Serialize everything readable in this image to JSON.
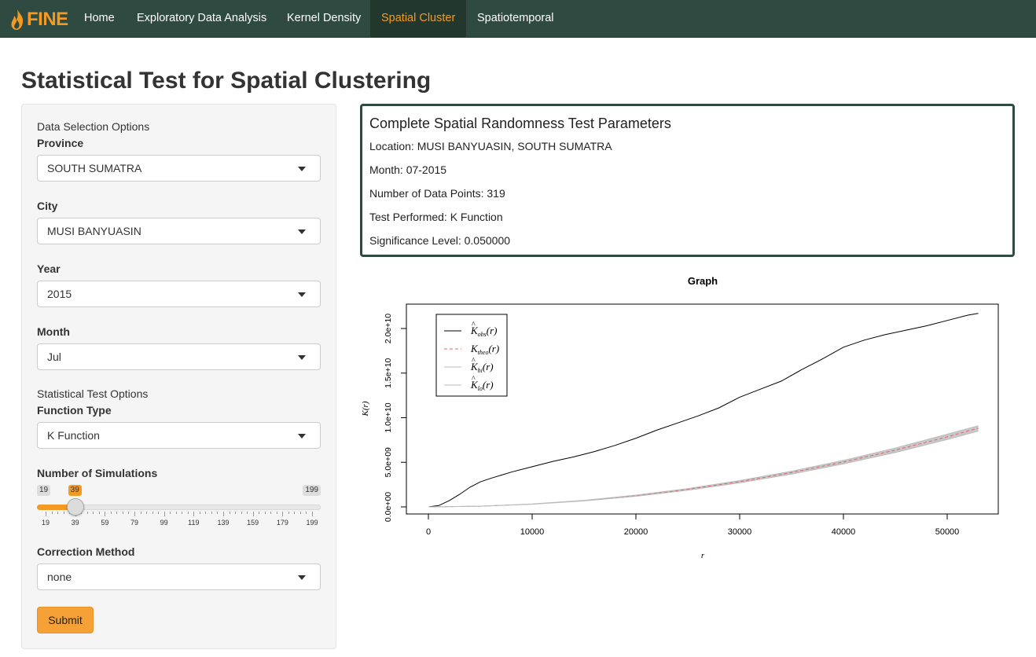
{
  "nav": {
    "brand": "FINE",
    "items": [
      "Home",
      "Exploratory Data Analysis",
      "Kernel Density",
      "Spatial Cluster",
      "Spatiotemporal"
    ],
    "active": "Spatial Cluster"
  },
  "page_title": "Statistical Test for Spatial Clustering",
  "sidebar": {
    "data_section": "Data Selection Options",
    "province": {
      "label": "Province",
      "value": "SOUTH SUMATRA"
    },
    "city": {
      "label": "City",
      "value": "MUSI BANYUASIN"
    },
    "year": {
      "label": "Year",
      "value": "2015"
    },
    "month": {
      "label": "Month",
      "value": "Jul"
    },
    "test_section": "Statistical Test Options",
    "function_type": {
      "label": "Function Type",
      "value": "K Function"
    },
    "simulations": {
      "label": "Number of Simulations",
      "min": "19",
      "max": "199",
      "value": "39",
      "value_num": 39,
      "min_num": 19,
      "max_num": 199,
      "ticks": [
        "19",
        "39",
        "59",
        "79",
        "99",
        "119",
        "139",
        "159",
        "179",
        "199"
      ]
    },
    "correction": {
      "label": "Correction Method",
      "value": "none"
    },
    "submit_label": "Submit"
  },
  "params": {
    "title": "Complete Spatial Randomness Test Parameters",
    "location": "Location: MUSI BANYUASIN, SOUTH SUMATRA",
    "month": "Month: 07-2015",
    "points": "Number of Data Points: 319",
    "test": "Test Performed: K Function",
    "significance": "Significance Level: 0.050000"
  },
  "colors": {
    "navbar": "#2e4a41",
    "accent": "#f39a24"
  },
  "chart_data": {
    "type": "line",
    "title": "Graph",
    "xlabel": "r",
    "ylabel": "K(r)",
    "xlim": [
      0,
      53000
    ],
    "ylim": [
      0,
      21000000000.0
    ],
    "xticks": [
      "0",
      "10000",
      "20000",
      "30000",
      "40000",
      "50000"
    ],
    "xtick_values": [
      0,
      10000,
      20000,
      30000,
      40000,
      50000
    ],
    "yticks": [
      "0.0e+00",
      "5.0e+09",
      "1.0e+10",
      "1.5e+10",
      "2.0e+10"
    ],
    "ytick_values": [
      0,
      5000000000.0,
      10000000000.0,
      15000000000.0,
      20000000000.0
    ],
    "legend": {
      "placement": "top-left",
      "entries": [
        {
          "label": "K̂obs(r)",
          "main": "K",
          "sub": "obs",
          "hat": true
        },
        {
          "label": "Ktheo(r)",
          "main": "K",
          "sub": "theo",
          "hat": false
        },
        {
          "label": "K̂hi(r)",
          "main": "K",
          "sub": "hi",
          "hat": true
        },
        {
          "label": "K̂lo(r)",
          "main": "K",
          "sub": "lo",
          "hat": true
        }
      ]
    },
    "series": [
      {
        "name": "obs",
        "color": "#000000",
        "x": [
          0,
          1000,
          2000,
          3000,
          4000,
          5000,
          6000,
          8000,
          10000,
          12000,
          14000,
          16000,
          18000,
          20000,
          22000,
          24000,
          26000,
          28000,
          30000,
          32000,
          34000,
          36000,
          38000,
          40000,
          42000,
          44000,
          46000,
          48000,
          50000,
          52000,
          53000
        ],
        "y": [
          0,
          150000000.0,
          700000000.0,
          1400000000.0,
          2200000000.0,
          2800000000.0,
          3200000000.0,
          3900000000.0,
          4500000000.0,
          5100000000.0,
          5600000000.0,
          6200000000.0,
          6900000000.0,
          7700000000.0,
          8600000000.0,
          9400000000.0,
          10200000000.0,
          11100000000.0,
          12300000000.0,
          13200000000.0,
          14100000000.0,
          15400000000.0,
          16600000000.0,
          17900000000.0,
          18700000000.0,
          19300000000.0,
          19800000000.0,
          20300000000.0,
          20900000000.0,
          21500000000.0,
          21700000000.0
        ]
      },
      {
        "name": "theo",
        "color": "#e0646e",
        "x": [
          0,
          5000,
          10000,
          15000,
          20000,
          25000,
          30000,
          35000,
          40000,
          45000,
          50000,
          53000
        ],
        "y": [
          0,
          79000000.0,
          314000000.0,
          707000000.0,
          1257000000.0,
          1963000000.0,
          2827000000.0,
          3848000000.0,
          5027000000.0,
          6362000000.0,
          7854000000.0,
          8825000000.0
        ]
      },
      {
        "name": "hi",
        "color": "#bbbbbb",
        "x": [
          0,
          5000,
          10000,
          15000,
          20000,
          25000,
          30000,
          35000,
          40000,
          45000,
          50000,
          53000
        ],
        "y": [
          0,
          83000000.0,
          330000000.0,
          740000000.0,
          1320000000.0,
          2050000000.0,
          2950000000.0,
          4000000000.0,
          5220000000.0,
          6600000000.0,
          8150000000.0,
          9100000000.0
        ]
      },
      {
        "name": "lo",
        "color": "#bbbbbb",
        "x": [
          0,
          5000,
          10000,
          15000,
          20000,
          25000,
          30000,
          35000,
          40000,
          45000,
          50000,
          53000
        ],
        "y": [
          0,
          75000000.0,
          298000000.0,
          670000000.0,
          1190000000.0,
          1870000000.0,
          2700000000.0,
          3680000000.0,
          4820000000.0,
          6100000000.0,
          7550000000.0,
          8500000000.0
        ]
      }
    ]
  }
}
